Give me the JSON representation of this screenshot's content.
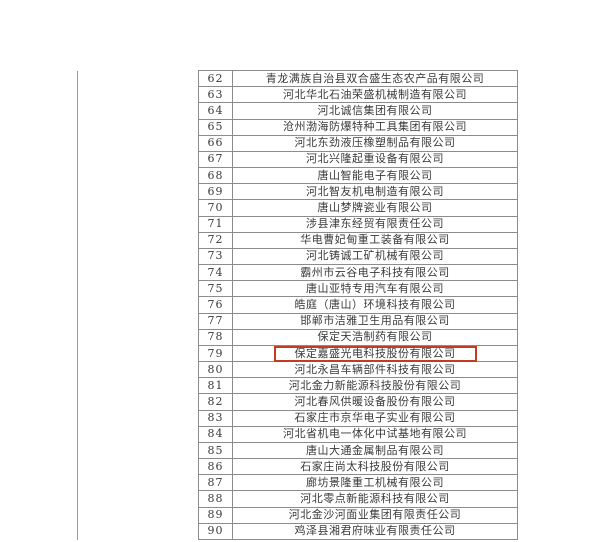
{
  "page": {
    "background_color": "#ffffff",
    "description_colors": {
      "table_border": "#8c8c8c",
      "text": "#3a3a3a",
      "highlight_box": "#c53b22"
    }
  },
  "table": {
    "columns": [
      "number",
      "company_name"
    ],
    "rows": [
      {
        "no": "62",
        "name": "青龙满族自治县双合盛生态农产品有限公司",
        "highlighted": false
      },
      {
        "no": "63",
        "name": "河北华北石油荣盛机械制造有限公司",
        "highlighted": false
      },
      {
        "no": "64",
        "name": "河北诚信集团有限公司",
        "highlighted": false
      },
      {
        "no": "65",
        "name": "沧州渤海防爆特种工具集团有限公司",
        "highlighted": false
      },
      {
        "no": "66",
        "name": "河北东劲液压橡塑制品有限公司",
        "highlighted": false
      },
      {
        "no": "67",
        "name": "河北兴隆起重设备有限公司",
        "highlighted": false
      },
      {
        "no": "68",
        "name": "唐山智能电子有限公司",
        "highlighted": false
      },
      {
        "no": "69",
        "name": "河北智友机电制造有限公司",
        "highlighted": false
      },
      {
        "no": "70",
        "name": "唐山梦牌瓷业有限公司",
        "highlighted": false
      },
      {
        "no": "71",
        "name": "涉县津东经贸有限责任公司",
        "highlighted": false
      },
      {
        "no": "72",
        "name": "华电曹妃甸重工装备有限公司",
        "highlighted": false
      },
      {
        "no": "73",
        "name": "河北铸诚工矿机械有限公司",
        "highlighted": false
      },
      {
        "no": "74",
        "name": "霸州市云谷电子科技有限公司",
        "highlighted": false
      },
      {
        "no": "75",
        "name": "唐山亚特专用汽车有限公司",
        "highlighted": false
      },
      {
        "no": "76",
        "name": "皓庭（唐山）环境科技有限公司",
        "highlighted": false
      },
      {
        "no": "77",
        "name": "邯郸市洁雅卫生用品有限公司",
        "highlighted": false
      },
      {
        "no": "78",
        "name": "保定天浩制药有限公司",
        "highlighted": false
      },
      {
        "no": "79",
        "name": "保定嘉盛光电科技股份有限公司",
        "highlighted": true
      },
      {
        "no": "80",
        "name": "河北永昌车辆部件科技有限公司",
        "highlighted": false
      },
      {
        "no": "81",
        "name": "河北金力新能源科技股份有限公司",
        "highlighted": false
      },
      {
        "no": "82",
        "name": "河北春风供暖设备股份有限公司",
        "highlighted": false
      },
      {
        "no": "83",
        "name": "石家庄市京华电子实业有限公司",
        "highlighted": false
      },
      {
        "no": "84",
        "name": "河北省机电一体化中试基地有限公司",
        "highlighted": false
      },
      {
        "no": "85",
        "name": "唐山大通金属制品有限公司",
        "highlighted": false
      },
      {
        "no": "86",
        "name": "石家庄尚太科技股份有限公司",
        "highlighted": false
      },
      {
        "no": "87",
        "name": "廊坊景隆重工机械有限公司",
        "highlighted": false
      },
      {
        "no": "88",
        "name": "河北零点新能源科技有限公司",
        "highlighted": false
      },
      {
        "no": "89",
        "name": "河北金沙河面业集团有限责任公司",
        "highlighted": false
      },
      {
        "no": "90",
        "name": "鸡泽县湘君府味业有限责任公司",
        "highlighted": false
      }
    ]
  }
}
